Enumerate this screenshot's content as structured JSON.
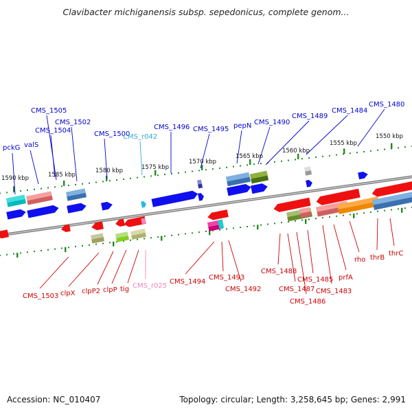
{
  "title": "Clavibacter michiganensis subsp. sepedonicus, complete genom...",
  "accession": "Accession: NC_010407",
  "summary": "Topology: circular; Length: 3,258,645 bp; Genes: 2,991",
  "colors": {
    "forward_label": "#0000cc",
    "reverse_label": "#cc0000",
    "rna_forward_label": "#33aacc",
    "rna_reverse_label": "#ee88bb",
    "backbone": "#7f7f7f",
    "tick": "#228822"
  },
  "scale_labels": [
    "1590 kbp",
    "1585 kbp",
    "1580 kbp",
    "1575 kbp",
    "1570 kbp",
    "1565 kbp",
    "1560 kbp",
    "1555 kbp",
    "1550 kbp"
  ],
  "forward_labels": [
    "pckG",
    "valS",
    "CMS_1505",
    "CMS_1504",
    "CMS_1502",
    "CMS_1500",
    "CMS_r042",
    "CMS_1496",
    "CMS_1495",
    "pepN",
    "CMS_1490",
    "CMS_1489",
    "CMS_1484",
    "CMS_1480"
  ],
  "reverse_labels": [
    "CMS_1503",
    "clpX",
    "clpP2",
    "clpP",
    "tig",
    "CMS_r025",
    "CMS_1494",
    "CMS_1493",
    "CMS_1492",
    "CMS_1488",
    "CMS_1487",
    "CMS_1486",
    "CMS_1485",
    "CMS_1483",
    "prfA",
    "rho",
    "thrB",
    "thrC"
  ]
}
